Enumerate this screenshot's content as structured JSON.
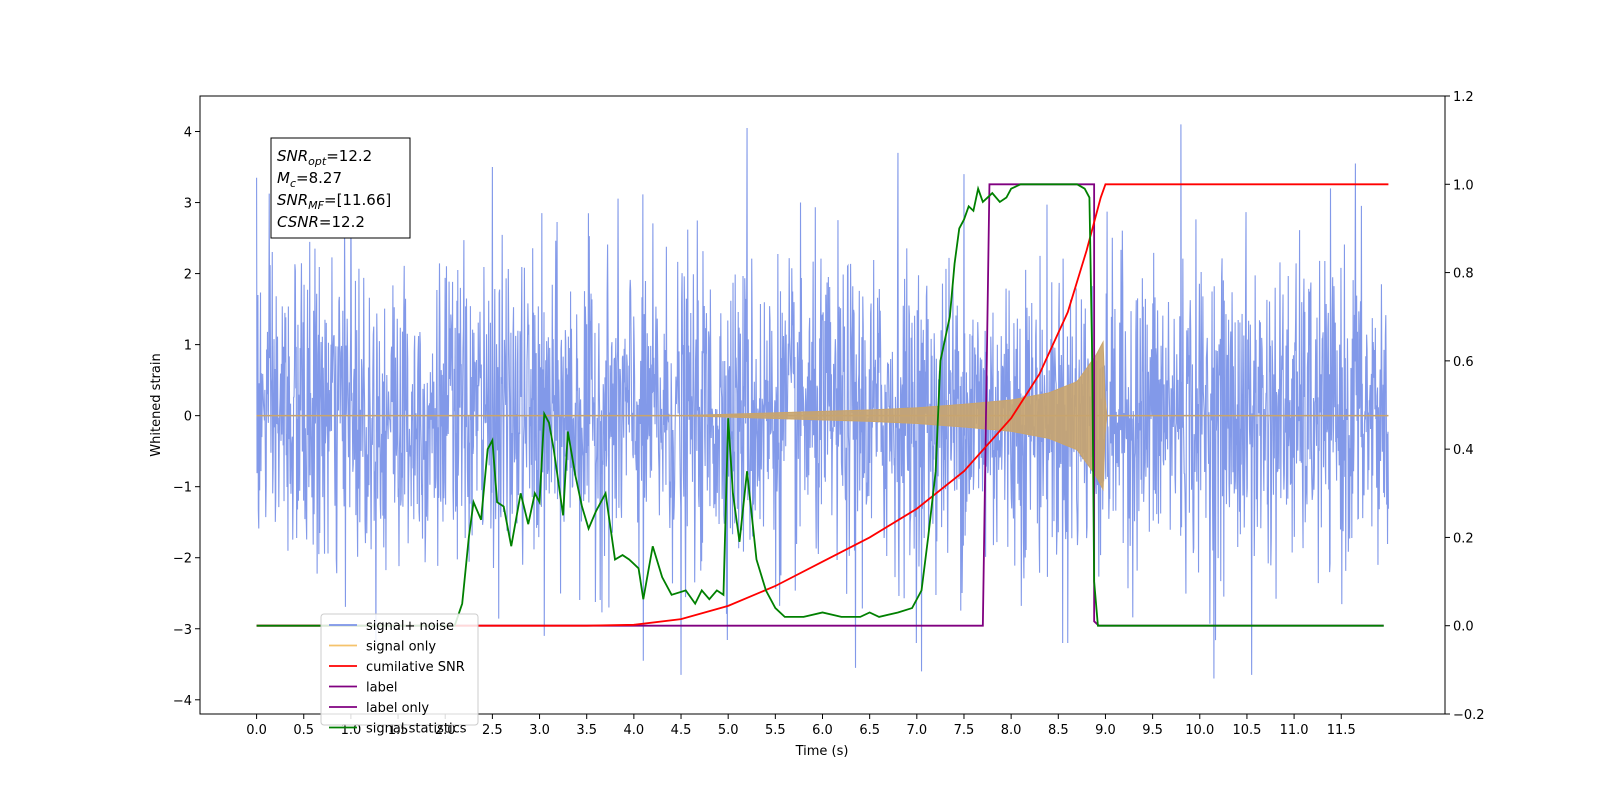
{
  "chart_data": {
    "type": "line",
    "xlabel": "Time (s)",
    "ylabel": "Whitened strain",
    "xlim": [
      -0.6,
      12.6
    ],
    "ylim": [
      -4.2,
      4.5
    ],
    "ylim_right": [
      -0.2,
      1.2
    ],
    "x_ticks": [
      "0.0",
      "0.5",
      "1.0",
      "1.5",
      "2.0",
      "2.5",
      "3.0",
      "3.5",
      "4.0",
      "4.5",
      "5.0",
      "5.5",
      "6.0",
      "6.5",
      "7.0",
      "7.5",
      "8.0",
      "8.5",
      "9.0",
      "9.5",
      "10.0",
      "10.5",
      "11.0",
      "11.5"
    ],
    "y_ticks_left": [
      "−4",
      "−3",
      "−2",
      "−1",
      "0",
      "1",
      "2",
      "3",
      "4"
    ],
    "y_ticks_right": [
      "−0.2",
      "0.0",
      "0.2",
      "0.4",
      "0.6",
      "0.8",
      "1.0",
      "1.2"
    ],
    "grid": false,
    "annotation": {
      "lines": [
        {
          "base": "SNR",
          "sub": "opt",
          "rest": "=12.2"
        },
        {
          "base": "M",
          "sub": "c",
          "rest": "=8.27"
        },
        {
          "base": "SNR",
          "sub": "MF",
          "rest": "=[11.66]"
        },
        {
          "base": "CSNR",
          "sub": "",
          "rest": "=12.2"
        }
      ]
    },
    "legend": {
      "position": "lower-left",
      "entries": [
        {
          "label": "signal+ noise",
          "color": "#7b93e8"
        },
        {
          "label": "signal only",
          "color": "#f5c36b"
        },
        {
          "label": "cumilative SNR",
          "color": "#ff0000"
        },
        {
          "label": "label",
          "color": "#800080"
        },
        {
          "label": "label only",
          "color": "#800080"
        },
        {
          "label": "signal statistics",
          "color": "#008000"
        }
      ]
    },
    "series": [
      {
        "name": "signal+ noise",
        "axis": "left",
        "color": "#7b93e8",
        "description_range": [
          0.0,
          12.0
        ],
        "sample_extremes": [
          [
            0.0,
            3.35
          ],
          [
            1.0,
            3.3
          ],
          [
            2.5,
            3.5
          ],
          [
            3.05,
            -3.1
          ],
          [
            4.1,
            -3.45
          ],
          [
            4.5,
            -3.65
          ],
          [
            5.2,
            4.05
          ],
          [
            6.35,
            -3.55
          ],
          [
            6.8,
            3.7
          ],
          [
            7.05,
            -3.6
          ],
          [
            7.5,
            3.4
          ],
          [
            8.6,
            -3.2
          ],
          [
            9.8,
            4.1
          ],
          [
            10.15,
            -3.7
          ],
          [
            10.55,
            -3.65
          ],
          [
            11.65,
            3.55
          ]
        ]
      },
      {
        "name": "signal only",
        "axis": "left",
        "color": "#c8a46e",
        "envelope": [
          [
            0.0,
            0.0
          ],
          [
            4.5,
            0.0
          ],
          [
            5.0,
            0.02
          ],
          [
            5.5,
            0.04
          ],
          [
            6.0,
            0.06
          ],
          [
            6.5,
            0.08
          ],
          [
            7.0,
            0.11
          ],
          [
            7.5,
            0.16
          ],
          [
            8.0,
            0.22
          ],
          [
            8.4,
            0.32
          ],
          [
            8.7,
            0.48
          ],
          [
            8.9,
            0.85
          ],
          [
            8.98,
            1.05
          ],
          [
            9.0,
            0.0
          ],
          [
            12.0,
            0.0
          ]
        ]
      },
      {
        "name": "cumilative SNR",
        "axis": "right",
        "color": "#ff0000",
        "x": [
          0.0,
          3.5,
          4.0,
          4.5,
          5.0,
          5.5,
          6.0,
          6.5,
          7.0,
          7.5,
          8.0,
          8.3,
          8.6,
          8.8,
          8.95,
          9.0,
          12.0
        ],
        "y": [
          0.0,
          0.0,
          0.002,
          0.015,
          0.045,
          0.09,
          0.145,
          0.2,
          0.265,
          0.35,
          0.47,
          0.57,
          0.71,
          0.85,
          0.97,
          1.0,
          1.0
        ]
      },
      {
        "name": "label",
        "axis": "right",
        "color": "#800080",
        "x": [
          0.0,
          7.7,
          7.77,
          8.88,
          8.88,
          8.93,
          11.95
        ],
        "y": [
          0.0,
          0.0,
          1.0,
          1.0,
          0.01,
          0.0,
          0.0
        ]
      },
      {
        "name": "signal statistics",
        "axis": "right",
        "color": "#008000",
        "x": [
          0.0,
          2.1,
          2.18,
          2.25,
          2.3,
          2.38,
          2.45,
          2.5,
          2.55,
          2.62,
          2.7,
          2.8,
          2.88,
          2.95,
          3.0,
          3.05,
          3.1,
          3.15,
          3.25,
          3.3,
          3.38,
          3.45,
          3.52,
          3.6,
          3.7,
          3.8,
          3.88,
          3.95,
          4.05,
          4.1,
          4.15,
          4.2,
          4.3,
          4.4,
          4.55,
          4.65,
          4.72,
          4.8,
          4.88,
          4.95,
          5.0,
          5.05,
          5.12,
          5.2,
          5.3,
          5.4,
          5.5,
          5.6,
          5.8,
          6.0,
          6.2,
          6.4,
          6.5,
          6.6,
          6.8,
          6.95,
          7.05,
          7.12,
          7.2,
          7.25,
          7.3,
          7.35,
          7.4,
          7.45,
          7.5,
          7.55,
          7.6,
          7.65,
          7.7,
          7.75,
          7.8,
          7.88,
          7.95,
          8.0,
          8.1,
          8.2,
          8.3,
          8.4,
          8.5,
          8.6,
          8.7,
          8.78,
          8.83,
          8.86,
          8.88,
          8.92,
          8.95,
          11.95
        ],
        "y": [
          0.0,
          0.0,
          0.05,
          0.2,
          0.28,
          0.24,
          0.4,
          0.42,
          0.28,
          0.27,
          0.18,
          0.3,
          0.23,
          0.3,
          0.28,
          0.48,
          0.46,
          0.4,
          0.25,
          0.44,
          0.34,
          0.27,
          0.22,
          0.26,
          0.3,
          0.15,
          0.16,
          0.15,
          0.13,
          0.06,
          0.12,
          0.18,
          0.11,
          0.07,
          0.08,
          0.05,
          0.08,
          0.06,
          0.08,
          0.07,
          0.47,
          0.3,
          0.19,
          0.35,
          0.15,
          0.08,
          0.04,
          0.02,
          0.02,
          0.03,
          0.02,
          0.02,
          0.03,
          0.02,
          0.03,
          0.04,
          0.08,
          0.2,
          0.35,
          0.6,
          0.65,
          0.7,
          0.82,
          0.9,
          0.92,
          0.95,
          0.94,
          0.99,
          0.96,
          0.97,
          0.98,
          0.96,
          0.97,
          0.99,
          1.0,
          1.0,
          1.0,
          1.0,
          1.0,
          1.0,
          1.0,
          0.99,
          0.97,
          0.6,
          0.1,
          0.0,
          0.0,
          0.0
        ]
      }
    ]
  }
}
